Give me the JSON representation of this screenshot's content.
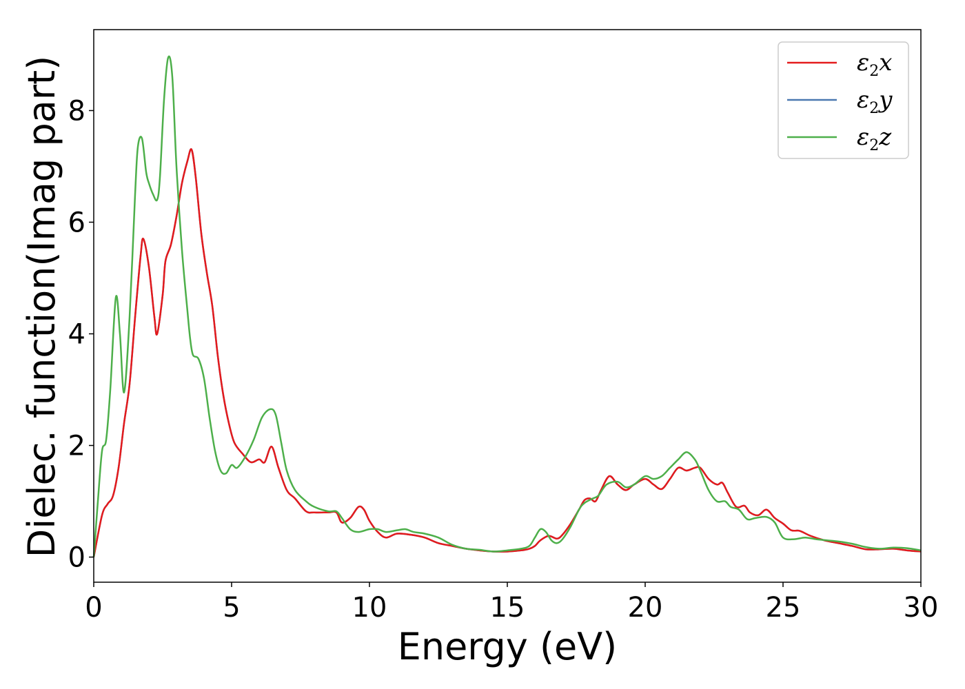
{
  "chart_data": {
    "type": "line",
    "xlabel": "Energy (eV)",
    "ylabel": "Dielec. function(Imag part)",
    "xlim": [
      0,
      30
    ],
    "ylim": [
      -0.45,
      9.45
    ],
    "xticks": [
      0,
      5,
      10,
      15,
      20,
      25,
      30
    ],
    "yticks": [
      0,
      2,
      4,
      6,
      8
    ],
    "grid": false,
    "legend_position": "top-right",
    "series": [
      {
        "name": "ε2x",
        "base": "ε",
        "sub": "2",
        "var": "x",
        "color": "#e41a1c",
        "x": [
          0,
          0.3,
          0.5,
          0.7,
          0.9,
          1.1,
          1.3,
          1.5,
          1.7,
          1.8,
          2.0,
          2.2,
          2.3,
          2.5,
          2.6,
          2.8,
          3.0,
          3.2,
          3.4,
          3.55,
          3.7,
          3.9,
          4.1,
          4.3,
          4.5,
          4.7,
          4.9,
          5.1,
          5.4,
          5.7,
          6.0,
          6.2,
          6.45,
          6.7,
          7.0,
          7.3,
          7.7,
          8.0,
          8.5,
          8.8,
          9.0,
          9.3,
          9.6,
          9.8,
          10.0,
          10.3,
          10.6,
          11.0,
          11.5,
          12.0,
          12.5,
          13.0,
          13.5,
          14.0,
          14.5,
          15.0,
          15.5,
          15.8,
          16.0,
          16.2,
          16.5,
          16.8,
          17.0,
          17.3,
          17.6,
          17.8,
          18.0,
          18.2,
          18.4,
          18.7,
          19.0,
          19.3,
          19.6,
          20.0,
          20.3,
          20.6,
          20.9,
          21.2,
          21.5,
          21.8,
          22.0,
          22.3,
          22.6,
          22.8,
          23.0,
          23.3,
          23.6,
          23.8,
          24.1,
          24.4,
          24.7,
          25.0,
          25.3,
          25.6,
          26.0,
          26.5,
          27.0,
          27.5,
          28.0,
          28.5,
          29.0,
          29.5,
          30.0
        ],
        "y": [
          0,
          0.75,
          0.95,
          1.1,
          1.6,
          2.4,
          3.1,
          4.3,
          5.4,
          5.7,
          5.2,
          4.3,
          4.0,
          4.7,
          5.3,
          5.6,
          6.1,
          6.7,
          7.1,
          7.3,
          6.8,
          5.8,
          5.1,
          4.5,
          3.6,
          2.9,
          2.4,
          2.05,
          1.85,
          1.7,
          1.75,
          1.7,
          1.98,
          1.6,
          1.2,
          1.05,
          0.82,
          0.8,
          0.8,
          0.8,
          0.62,
          0.7,
          0.9,
          0.85,
          0.65,
          0.45,
          0.35,
          0.42,
          0.4,
          0.35,
          0.25,
          0.2,
          0.15,
          0.12,
          0.1,
          0.1,
          0.12,
          0.15,
          0.2,
          0.3,
          0.38,
          0.33,
          0.4,
          0.6,
          0.85,
          1.02,
          1.05,
          1.0,
          1.2,
          1.45,
          1.3,
          1.2,
          1.3,
          1.4,
          1.3,
          1.22,
          1.4,
          1.6,
          1.55,
          1.6,
          1.6,
          1.4,
          1.3,
          1.33,
          1.15,
          0.9,
          0.92,
          0.8,
          0.75,
          0.85,
          0.7,
          0.6,
          0.48,
          0.47,
          0.38,
          0.3,
          0.25,
          0.2,
          0.14,
          0.14,
          0.15,
          0.12,
          0.1
        ]
      },
      {
        "name": "ε2y",
        "base": "ε",
        "sub": "2",
        "var": "y",
        "color": "#4a78b0",
        "x": [
          0,
          0.3,
          0.5,
          0.7,
          0.9,
          1.1,
          1.3,
          1.5,
          1.7,
          1.8,
          2.0,
          2.2,
          2.3,
          2.5,
          2.6,
          2.8,
          3.0,
          3.2,
          3.4,
          3.55,
          3.7,
          3.9,
          4.1,
          4.3,
          4.5,
          4.7,
          4.9,
          5.1,
          5.4,
          5.7,
          6.0,
          6.2,
          6.45,
          6.7,
          7.0,
          7.3,
          7.7,
          8.0,
          8.5,
          8.8,
          9.0,
          9.3,
          9.6,
          9.8,
          10.0,
          10.3,
          10.6,
          11.0,
          11.5,
          12.0,
          12.5,
          13.0,
          13.5,
          14.0,
          14.5,
          15.0,
          15.5,
          15.8,
          16.0,
          16.2,
          16.5,
          16.8,
          17.0,
          17.3,
          17.6,
          17.8,
          18.0,
          18.2,
          18.4,
          18.7,
          19.0,
          19.3,
          19.6,
          20.0,
          20.3,
          20.6,
          20.9,
          21.2,
          21.5,
          21.8,
          22.0,
          22.3,
          22.6,
          22.8,
          23.0,
          23.3,
          23.6,
          23.8,
          24.1,
          24.4,
          24.7,
          25.0,
          25.3,
          25.6,
          26.0,
          26.5,
          27.0,
          27.5,
          28.0,
          28.5,
          29.0,
          29.5,
          30.0
        ],
        "y": [
          0,
          0.75,
          0.95,
          1.1,
          1.6,
          2.4,
          3.1,
          4.3,
          5.4,
          5.7,
          5.2,
          4.3,
          4.0,
          4.7,
          5.3,
          5.6,
          6.1,
          6.7,
          7.1,
          7.3,
          6.8,
          5.8,
          5.1,
          4.5,
          3.6,
          2.9,
          2.4,
          2.05,
          1.85,
          1.7,
          1.75,
          1.7,
          1.98,
          1.6,
          1.2,
          1.05,
          0.82,
          0.8,
          0.8,
          0.8,
          0.62,
          0.7,
          0.9,
          0.85,
          0.65,
          0.45,
          0.35,
          0.42,
          0.4,
          0.35,
          0.25,
          0.2,
          0.15,
          0.12,
          0.1,
          0.1,
          0.12,
          0.15,
          0.2,
          0.3,
          0.38,
          0.33,
          0.4,
          0.6,
          0.85,
          1.02,
          1.05,
          1.0,
          1.2,
          1.45,
          1.3,
          1.2,
          1.3,
          1.4,
          1.3,
          1.22,
          1.4,
          1.6,
          1.55,
          1.6,
          1.6,
          1.4,
          1.3,
          1.33,
          1.15,
          0.9,
          0.92,
          0.8,
          0.75,
          0.85,
          0.7,
          0.6,
          0.48,
          0.47,
          0.38,
          0.3,
          0.25,
          0.2,
          0.14,
          0.14,
          0.15,
          0.12,
          0.1
        ]
      },
      {
        "name": "ε2z",
        "base": "ε",
        "sub": "2",
        "var": "z",
        "color": "#4daf4a",
        "x": [
          0,
          0.15,
          0.3,
          0.45,
          0.6,
          0.8,
          0.95,
          1.1,
          1.3,
          1.5,
          1.6,
          1.75,
          1.9,
          2.0,
          2.15,
          2.3,
          2.4,
          2.55,
          2.7,
          2.85,
          3.0,
          3.2,
          3.4,
          3.5,
          3.6,
          3.8,
          4.0,
          4.2,
          4.4,
          4.6,
          4.8,
          5.0,
          5.2,
          5.5,
          5.8,
          6.1,
          6.4,
          6.6,
          6.8,
          7.0,
          7.3,
          7.7,
          8.0,
          8.5,
          8.8,
          9.0,
          9.3,
          9.6,
          10.0,
          10.3,
          10.6,
          11.0,
          11.3,
          11.6,
          12.0,
          12.5,
          13.0,
          13.5,
          14.0,
          14.5,
          15.0,
          15.5,
          15.8,
          16.0,
          16.2,
          16.4,
          16.6,
          16.8,
          17.0,
          17.3,
          17.6,
          17.8,
          18.1,
          18.3,
          18.6,
          19.0,
          19.3,
          19.6,
          20.0,
          20.3,
          20.6,
          20.9,
          21.2,
          21.5,
          21.8,
          22.0,
          22.3,
          22.6,
          22.9,
          23.1,
          23.4,
          23.7,
          24.0,
          24.4,
          24.7,
          25.0,
          25.4,
          25.8,
          26.2,
          26.6,
          27.0,
          27.5,
          28.0,
          28.5,
          29.0,
          29.5,
          30.0
        ],
        "y": [
          0,
          1.0,
          1.9,
          2.1,
          3.0,
          4.65,
          4.0,
          2.95,
          4.3,
          6.5,
          7.35,
          7.5,
          6.9,
          6.7,
          6.5,
          6.4,
          6.8,
          8.2,
          8.95,
          8.6,
          7.0,
          5.5,
          4.4,
          3.9,
          3.62,
          3.55,
          3.2,
          2.5,
          1.9,
          1.55,
          1.5,
          1.65,
          1.6,
          1.8,
          2.1,
          2.5,
          2.65,
          2.55,
          2.05,
          1.55,
          1.2,
          1.0,
          0.9,
          0.82,
          0.82,
          0.7,
          0.5,
          0.45,
          0.5,
          0.5,
          0.45,
          0.48,
          0.5,
          0.45,
          0.42,
          0.35,
          0.22,
          0.15,
          0.13,
          0.1,
          0.12,
          0.15,
          0.2,
          0.35,
          0.5,
          0.45,
          0.3,
          0.25,
          0.32,
          0.55,
          0.85,
          0.97,
          1.05,
          1.1,
          1.3,
          1.35,
          1.25,
          1.3,
          1.45,
          1.4,
          1.45,
          1.6,
          1.75,
          1.88,
          1.75,
          1.55,
          1.2,
          1.0,
          1.0,
          0.9,
          0.85,
          0.68,
          0.7,
          0.72,
          0.62,
          0.35,
          0.32,
          0.35,
          0.32,
          0.3,
          0.28,
          0.24,
          0.18,
          0.15,
          0.17,
          0.16,
          0.12
        ]
      }
    ]
  }
}
